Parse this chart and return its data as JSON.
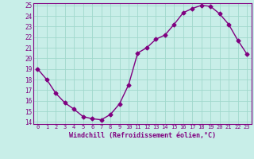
{
  "x": [
    0,
    1,
    2,
    3,
    4,
    5,
    6,
    7,
    8,
    9,
    10,
    11,
    12,
    13,
    14,
    15,
    16,
    17,
    18,
    19,
    20,
    21,
    22,
    23
  ],
  "y": [
    19.0,
    18.0,
    16.7,
    15.8,
    15.2,
    14.5,
    14.3,
    14.2,
    14.7,
    15.7,
    17.5,
    20.5,
    21.0,
    21.8,
    22.2,
    23.2,
    24.3,
    24.7,
    25.0,
    24.9,
    24.2,
    23.2,
    21.7,
    20.4
  ],
  "ylim": [
    14,
    25
  ],
  "xlim": [
    -0.5,
    23.5
  ],
  "yticks": [
    14,
    15,
    16,
    17,
    18,
    19,
    20,
    21,
    22,
    23,
    24,
    25
  ],
  "xticks": [
    0,
    1,
    2,
    3,
    4,
    5,
    6,
    7,
    8,
    9,
    10,
    11,
    12,
    13,
    14,
    15,
    16,
    17,
    18,
    19,
    20,
    21,
    22,
    23
  ],
  "xlabel": "Windchill (Refroidissement éolien,°C)",
  "line_color": "#800080",
  "marker": "D",
  "marker_size": 2.5,
  "bg_color": "#C8EEE8",
  "grid_color": "#A0D8CC",
  "tick_color": "#800080",
  "xlabel_color": "#800080",
  "tick_fontsize": 5.0,
  "xlabel_fontsize": 6.0
}
